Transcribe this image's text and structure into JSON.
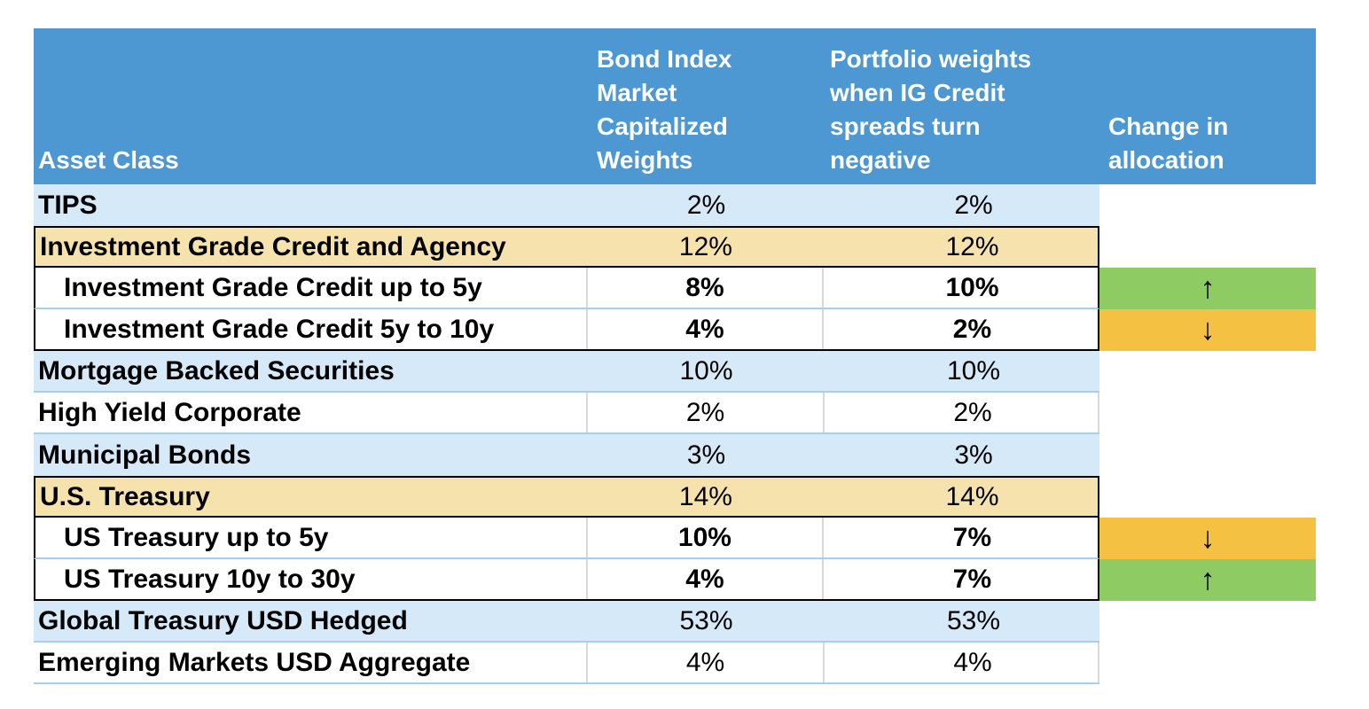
{
  "table": {
    "headers": {
      "asset_class": "Asset Class",
      "bond_index": "Bond Index Market Capitalized Weights",
      "portfolio": "Portfolio weights when IG Credit spreads turn negative",
      "change": "Change in allocation"
    },
    "rows": [
      {
        "name": "TIPS",
        "bond_index_weight": "2%",
        "portfolio_weight": "2%",
        "change": "",
        "change_direction": ""
      },
      {
        "name": "Investment Grade Credit and Agency",
        "bond_index_weight": "12%",
        "portfolio_weight": "12%",
        "change": "",
        "change_direction": ""
      },
      {
        "name": "Investment Grade Credit up to 5y",
        "bond_index_weight": "8%",
        "portfolio_weight": "10%",
        "change": "↑",
        "change_direction": "up"
      },
      {
        "name": "Investment Grade Credit 5y to 10y",
        "bond_index_weight": "4%",
        "portfolio_weight": "2%",
        "change": "↓",
        "change_direction": "down"
      },
      {
        "name": "Mortgage Backed Securities",
        "bond_index_weight": "10%",
        "portfolio_weight": "10%",
        "change": "",
        "change_direction": ""
      },
      {
        "name": "High Yield Corporate",
        "bond_index_weight": "2%",
        "portfolio_weight": "2%",
        "change": "",
        "change_direction": ""
      },
      {
        "name": "Municipal Bonds",
        "bond_index_weight": "3%",
        "portfolio_weight": "3%",
        "change": "",
        "change_direction": ""
      },
      {
        "name": "U.S. Treasury",
        "bond_index_weight": "14%",
        "portfolio_weight": "14%",
        "change": "",
        "change_direction": ""
      },
      {
        "name": "US Treasury up to 5y",
        "bond_index_weight": "10%",
        "portfolio_weight": "7%",
        "change": "↓",
        "change_direction": "down"
      },
      {
        "name": "US Treasury 10y to 30y",
        "bond_index_weight": "4%",
        "portfolio_weight": "7%",
        "change": "↑",
        "change_direction": "up"
      },
      {
        "name": "Global Treasury USD Hedged",
        "bond_index_weight": "53%",
        "portfolio_weight": "53%",
        "change": "",
        "change_direction": ""
      },
      {
        "name": "Emerging Markets USD Aggregate",
        "bond_index_weight": "4%",
        "portfolio_weight": "4%",
        "change": "",
        "change_direction": ""
      }
    ]
  },
  "icons": {
    "up_arrow": "↑",
    "down_arrow": "↓"
  },
  "colors": {
    "header_blue": "#4d97d2",
    "row_light_blue": "#d6e9f8",
    "row_yellow": "#f6e2ac",
    "change_up_green": "#8ecb63",
    "change_down_orange": "#f5c142",
    "separator_blue": "#a8cee9",
    "header_text": "#ffffff",
    "body_text": "#000000"
  }
}
